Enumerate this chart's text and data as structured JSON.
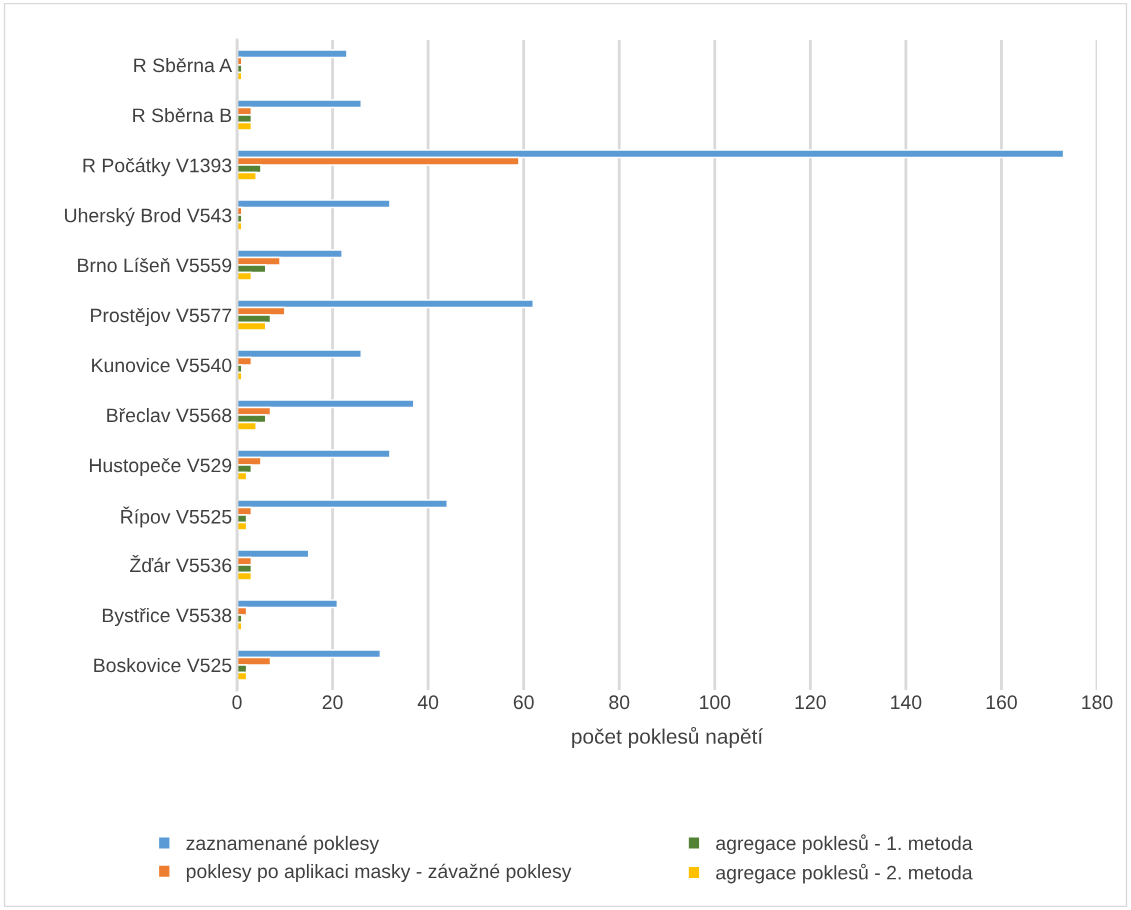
{
  "chart_data": {
    "type": "bar",
    "orientation": "horizontal",
    "xlabel": "počet poklesů napětí",
    "categories": [
      "R Sběrna A",
      "R Sběrna B",
      "R Počátky V1393",
      "Uherský Brod V543",
      "Brno Líšeň V5559",
      "Prostějov V5577",
      "Kunovice V5540",
      "Břeclav V5568",
      "Hustopeče V529",
      "Řípov V5525",
      "Žďár V5536",
      "Bystřice V5538",
      "Boskovice V525"
    ],
    "series": [
      {
        "name": "zaznamenané poklesy",
        "color": "#5b9bd5",
        "values": [
          23,
          26,
          173,
          32,
          22,
          62,
          26,
          37,
          32,
          44,
          15,
          21,
          30
        ]
      },
      {
        "name": "poklesy po aplikaci masky - závažné poklesy",
        "color": "#ed7d31",
        "values": [
          1,
          3,
          59,
          1,
          9,
          10,
          3,
          7,
          5,
          3,
          3,
          2,
          7
        ]
      },
      {
        "name": "agregace poklesů - 1. metoda",
        "color": "#548235",
        "values": [
          1,
          3,
          5,
          1,
          6,
          7,
          1,
          6,
          3,
          2,
          3,
          1,
          2
        ]
      },
      {
        "name": "agregace poklesů - 2. metoda",
        "color": "#ffc000",
        "values": [
          1,
          3,
          4,
          1,
          3,
          6,
          1,
          4,
          2,
          2,
          3,
          1,
          2
        ]
      }
    ],
    "xlim": [
      0,
      180
    ],
    "xticks": [
      0,
      20,
      40,
      60,
      80,
      100,
      120,
      140,
      160,
      180
    ],
    "grid": "x",
    "legend": "bottom"
  }
}
